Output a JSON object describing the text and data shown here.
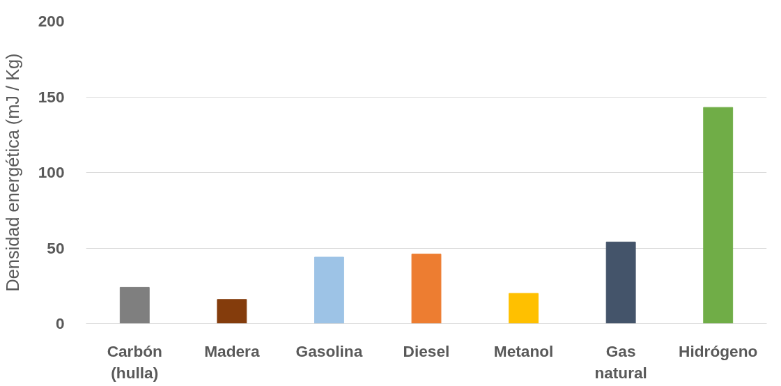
{
  "chart_data": {
    "type": "bar",
    "ylabel": "Densidad energética (mJ / Kg)",
    "categories": [
      "Carbón (hulla)",
      "Madera",
      "Gasolina",
      "Diesel",
      "Metanol",
      "Gas natural",
      "Hidrógeno"
    ],
    "values": [
      24,
      16,
      44,
      46,
      20,
      54,
      143
    ],
    "colors": [
      "#7f7f7f",
      "#843c0c",
      "#9dc3e6",
      "#ed7d31",
      "#ffc000",
      "#44546a",
      "#70ad47"
    ],
    "ylim": [
      0,
      200
    ],
    "yticks": [
      0,
      50,
      100,
      150,
      200
    ],
    "grid": "y"
  }
}
